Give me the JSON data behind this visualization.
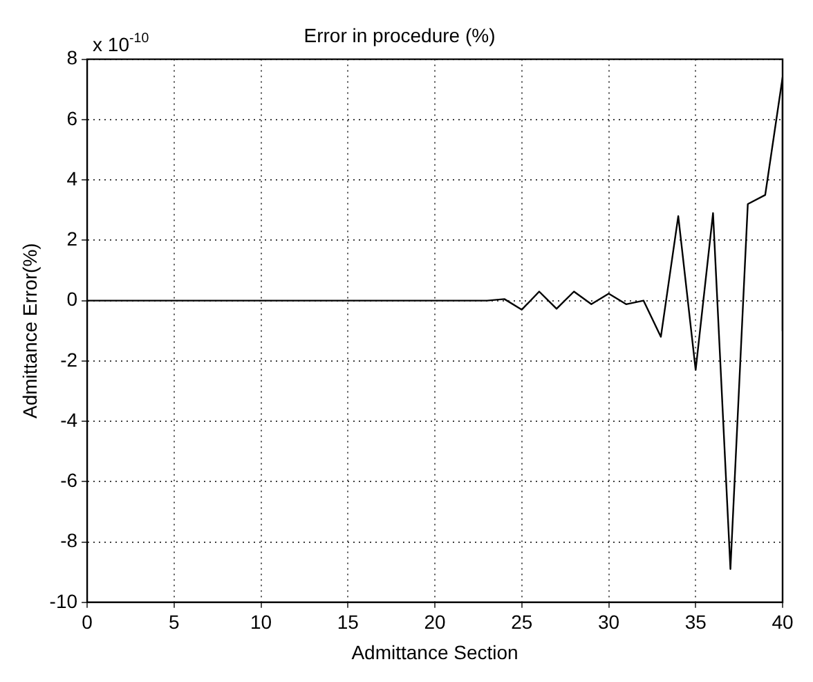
{
  "chart_data": {
    "type": "line",
    "title": "Error in procedure (%)",
    "xlabel": "Admittance Section",
    "ylabel": "Admittance Error(%)",
    "annotations": [
      "x 10$^{-10}$"
    ],
    "x": [
      0,
      5,
      10,
      15,
      20,
      23,
      24,
      25,
      26,
      27,
      28,
      29,
      30,
      31,
      32,
      33,
      34,
      35,
      36,
      37,
      38,
      39,
      40,
      40
    ],
    "series": [
      {
        "color": "#000000",
        "values": [
          0,
          0,
          0,
          0,
          0,
          0,
          0.05,
          -0.3,
          0.3,
          -0.27,
          0.3,
          -0.12,
          0.23,
          -0.12,
          0,
          -1.2,
          2.8,
          -2.3,
          2.9,
          -8.9,
          3.2,
          3.5,
          7.4,
          -1.0
        ]
      }
    ],
    "xlim": [
      0,
      40
    ],
    "xticks": [
      0,
      5,
      10,
      15,
      20,
      25,
      30,
      35,
      40
    ],
    "ylim": [
      -10,
      8
    ],
    "yticks": [
      -10,
      -8,
      -6,
      -4,
      -2,
      0,
      2,
      4,
      6,
      8
    ],
    "grid": true,
    "legend": false,
    "marker": "none",
    "line_style": "solid"
  }
}
